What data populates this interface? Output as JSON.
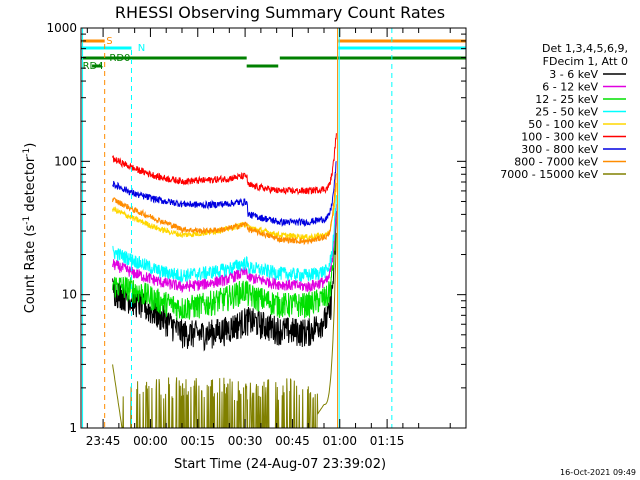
{
  "chart_data": {
    "type": "line",
    "title": "RHESSI Observing Summary Count Rates",
    "xlabel": "Start Time (24-Aug-07 23:39:02)",
    "ylabel_main": "Count Rate (s",
    "ylabel_sup": "-1",
    "ylabel_mid": " detector",
    "ylabel_sup2": "-1",
    "ylabel_end": ")",
    "yscale": "log",
    "ylim": [
      1,
      1000
    ],
    "xlim_minutes": [
      -22,
      100
    ],
    "x_tick_labels": [
      "23:45",
      "00:00",
      "00:15",
      "00:30",
      "00:45",
      "01:00",
      "01:15"
    ],
    "x_tick_minutes": [
      -15,
      0,
      15,
      30,
      45,
      60,
      75
    ],
    "y_tick_labels": [
      "1",
      "10",
      "100",
      "1000"
    ],
    "y_tick_values": [
      1,
      10,
      100,
      1000
    ],
    "legend_header": [
      "Det 1,3,4,5,6,9,",
      "FDecim 1, Att 0"
    ],
    "legend_placement": "top-right, outside plot",
    "timestamp": "16-Oct-2021 09:49",
    "flag_labels": {
      "S": "S",
      "N": "N",
      "RD0": "RD0",
      "RD4": "RD4"
    },
    "series": [
      {
        "name": "3 - 6 keV",
        "color": "#000000",
        "values": [
          11,
          9,
          7,
          5.2,
          5.1,
          5.5,
          6.5,
          6.5,
          5.5,
          5.3,
          6.5,
          40
        ],
        "noise": 1.25
      },
      {
        "name": "6 - 12 keV",
        "color": "#e000e0",
        "values": [
          17,
          14.5,
          12.5,
          11.5,
          12,
          13,
          15,
          13.5,
          12,
          11.5,
          12.5,
          50
        ],
        "noise": 1.1
      },
      {
        "name": "12 - 25 keV",
        "color": "#00e000",
        "values": [
          12,
          11,
          9,
          8,
          8.5,
          9.5,
          11,
          10,
          8.5,
          8.5,
          9.5,
          45
        ],
        "noise": 1.22
      },
      {
        "name": "25 - 50 keV",
        "color": "#00ffff",
        "values": [
          21,
          18,
          15,
          14,
          14.5,
          15.5,
          17.5,
          16,
          14.5,
          14,
          15,
          60
        ],
        "noise": 1.12
      },
      {
        "name": "50 - 100 keV",
        "color": "#ffd700",
        "values": [
          44,
          37,
          31,
          28,
          29,
          31,
          34,
          32,
          28,
          27,
          28,
          70
        ],
        "noise": 1.05
      },
      {
        "name": "100 - 300 keV",
        "color": "#ff0000",
        "values": [
          105,
          88,
          76,
          71,
          72,
          74,
          78,
          66,
          60,
          60,
          62,
          180
        ],
        "noise": 1.06
      },
      {
        "name": "300 - 800 keV",
        "color": "#0000e0",
        "values": [
          68,
          57,
          51,
          48,
          47,
          48,
          50,
          40,
          35,
          35,
          37,
          110
        ],
        "noise": 1.06
      },
      {
        "name": "800 - 7000 keV",
        "color": "#ff8c00",
        "values": [
          52,
          43,
          36,
          31,
          30,
          31,
          34,
          31,
          26,
          25,
          27,
          90
        ],
        "noise": 1.05
      },
      {
        "name": "7000 - 15000 keV",
        "color": "#808000",
        "values": [
          3,
          1.2,
          1,
          1,
          1,
          1,
          1,
          1,
          1,
          1,
          1.5,
          35
        ],
        "noise": 1.0
      }
    ],
    "series_times_minutes": [
      -12,
      -5,
      3,
      10,
      17,
      24,
      30.5,
      31,
      41,
      50,
      55,
      59
    ]
  }
}
